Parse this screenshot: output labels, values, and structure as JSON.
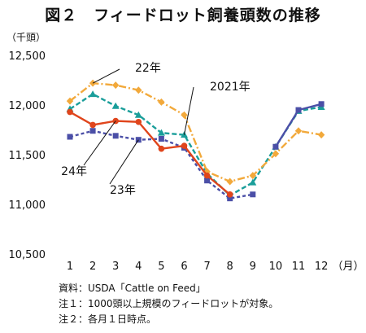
{
  "chart_data": {
    "type": "line",
    "title": "図２　フィードロット飼養頭数の推移",
    "ylabel": "（千頭）",
    "xlabel": "（月）",
    "ylim": [
      10500,
      12500
    ],
    "yticks": [
      10500,
      11000,
      11500,
      12000,
      12500
    ],
    "ytick_labels": [
      "10,500",
      "11,000",
      "11,500",
      "12,000",
      "12,500"
    ],
    "categories": [
      "1",
      "2",
      "3",
      "4",
      "5",
      "6",
      "7",
      "8",
      "9",
      "10",
      "11",
      "12"
    ],
    "grid": false,
    "series": [
      {
        "name": "2021年",
        "color": "#1a9e9a",
        "marker": "triangle",
        "dash": "6,3",
        "values": [
          11960,
          12110,
          11990,
          11900,
          11720,
          11700,
          11310,
          11090,
          11220,
          11580,
          11940,
          11980
        ]
      },
      {
        "name": "22年",
        "color": "#f2a93b",
        "marker": "diamond",
        "dash": "9,3,2,3",
        "values": [
          12040,
          12220,
          12200,
          12150,
          12030,
          11900,
          11330,
          11230,
          11290,
          11510,
          11740,
          11700
        ]
      },
      {
        "name": "23年",
        "color": "#4b4fa7",
        "marker": "square",
        "dash": "4,3",
        "values": [
          11680,
          11740,
          11690,
          11650,
          11660,
          11570,
          11240,
          11060,
          11100,
          null,
          null,
          null
        ]
      },
      {
        "name": "24年",
        "color": "#e0451c",
        "marker": "circle",
        "dash": "",
        "values": [
          11930,
          11800,
          11840,
          11830,
          11560,
          11590,
          11290,
          11100,
          null,
          null,
          null,
          null
        ]
      },
      {
        "name": "",
        "color": "#4b4fa7",
        "marker": "square",
        "dash": "",
        "values": [
          null,
          null,
          null,
          null,
          null,
          null,
          null,
          null,
          null,
          11580,
          11950,
          12010
        ]
      }
    ]
  },
  "notes": [
    "資料：USDA「Cattle on Feed」",
    "注１：1000頭以上規模のフィードロットが対象。",
    "注２：各月１日時点。"
  ]
}
